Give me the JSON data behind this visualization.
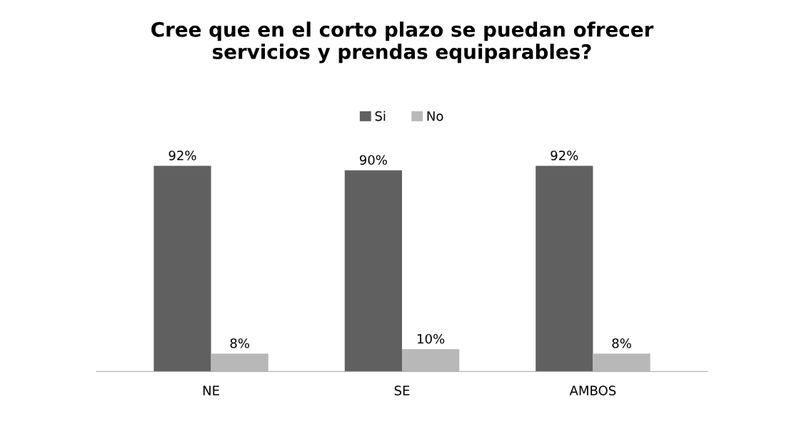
{
  "chart_data": {
    "type": "bar",
    "title": "Cree que en el corto plazo se puedan ofrecer\nservicios y prendas equiparables?",
    "categories": [
      "NE",
      "SE",
      "AMBOS"
    ],
    "series": [
      {
        "name": "Si",
        "color": "#606060",
        "values": [
          92,
          90,
          92
        ],
        "value_labels": [
          "92%",
          "90%",
          "92%"
        ]
      },
      {
        "name": "No",
        "color": "#b8b8b8",
        "values": [
          8,
          10,
          8
        ],
        "value_labels": [
          "8%",
          "10%",
          "8%"
        ]
      }
    ],
    "legend": "top",
    "grid": false
  }
}
